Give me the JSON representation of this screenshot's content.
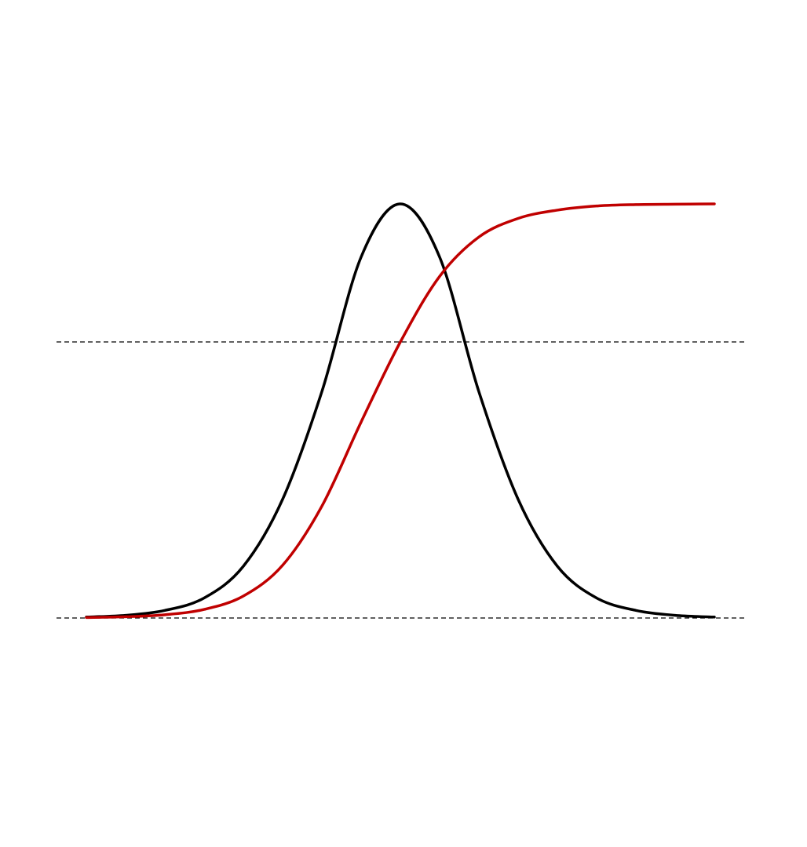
{
  "chart_data": {
    "type": "line",
    "title": "",
    "xlabel": "",
    "ylabel": "",
    "xlim": [
      -4,
      4
    ],
    "ylim": [
      0,
      1.0
    ],
    "grid": false,
    "legend": "none",
    "reference_lines": [
      {
        "y": 0,
        "style": "dashed",
        "color": "#000000"
      },
      {
        "y": 0.4,
        "style": "dashed",
        "color": "#000000"
      }
    ],
    "series": [
      {
        "color": "#000000",
        "x": [
          -4.0,
          -3.5,
          -3.0,
          -2.5,
          -2.0,
          -1.5,
          -1.0,
          -0.5,
          0.0,
          0.5,
          1.0,
          1.5,
          2.0,
          2.5,
          3.0,
          3.5,
          4.0
        ],
        "y": [
          0.0014,
          0.0039,
          0.011,
          0.029,
          0.075,
          0.172,
          0.328,
          0.523,
          0.6,
          0.523,
          0.328,
          0.172,
          0.075,
          0.029,
          0.011,
          0.0039,
          0.0014
        ]
      },
      {
        "color": "#c00000",
        "x": [
          -4.0,
          -3.5,
          -3.0,
          -2.5,
          -2.0,
          -1.5,
          -1.0,
          -0.5,
          0.0,
          0.5,
          1.0,
          1.5,
          2.0,
          2.5,
          3.0,
          3.5,
          4.0
        ],
        "y": [
          0.0007,
          0.0018,
          0.0047,
          0.0124,
          0.0318,
          0.0764,
          0.162,
          0.284,
          0.4,
          0.495,
          0.552,
          0.579,
          0.591,
          0.597,
          0.599,
          0.5996,
          0.6
        ]
      }
    ]
  }
}
